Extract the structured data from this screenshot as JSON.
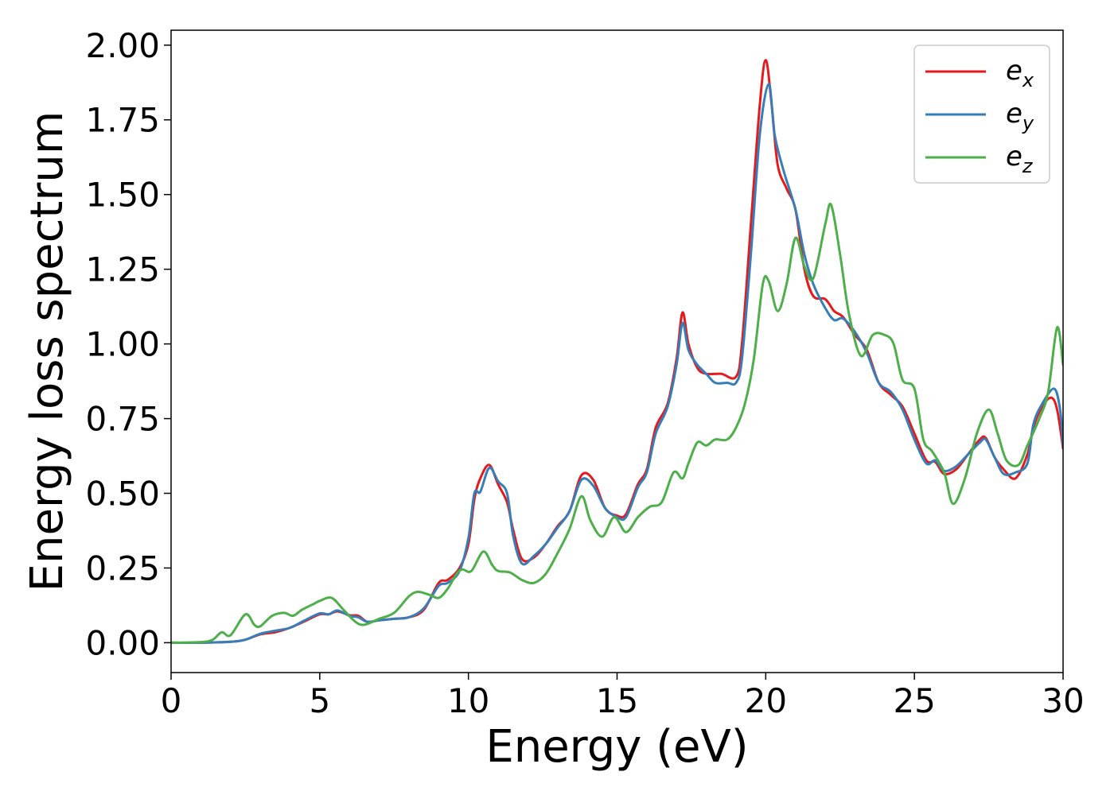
{
  "chart_data": {
    "type": "line",
    "title": "",
    "xlabel": "Energy (eV)",
    "ylabel": "Energy loss spectrum",
    "xlim": [
      0,
      30
    ],
    "ylim": [
      -0.1,
      2.05
    ],
    "xticks": [
      0,
      5,
      10,
      15,
      20,
      25,
      30
    ],
    "xtick_labels": [
      "0",
      "5",
      "10",
      "15",
      "20",
      "25",
      "30"
    ],
    "yticks": [
      0,
      0.25,
      0.5,
      0.75,
      1.0,
      1.25,
      1.5,
      1.75,
      2.0
    ],
    "ytick_labels": [
      "0.00",
      "0.25",
      "0.50",
      "0.75",
      "1.00",
      "1.25",
      "1.50",
      "1.75",
      "2.00"
    ],
    "grid": false,
    "legend_position": "top-right",
    "series": [
      {
        "name": "e",
        "subscript": "x",
        "color": "#e41a1c",
        "points": [
          [
            0,
            0
          ],
          [
            1,
            0
          ],
          [
            2,
            0.003
          ],
          [
            2.5,
            0.01
          ],
          [
            3,
            0.028
          ],
          [
            3.5,
            0.035
          ],
          [
            4,
            0.05
          ],
          [
            4.5,
            0.072
          ],
          [
            5,
            0.095
          ],
          [
            5.3,
            0.095
          ],
          [
            5.6,
            0.105
          ],
          [
            6,
            0.092
          ],
          [
            6.3,
            0.09
          ],
          [
            6.6,
            0.07
          ],
          [
            7,
            0.075
          ],
          [
            7.5,
            0.08
          ],
          [
            8,
            0.085
          ],
          [
            8.5,
            0.11
          ],
          [
            9,
            0.2
          ],
          [
            9.3,
            0.21
          ],
          [
            9.7,
            0.25
          ],
          [
            10,
            0.33
          ],
          [
            10.2,
            0.48
          ],
          [
            10.4,
            0.55
          ],
          [
            10.7,
            0.595
          ],
          [
            11,
            0.53
          ],
          [
            11.3,
            0.47
          ],
          [
            11.5,
            0.38
          ],
          [
            11.8,
            0.28
          ],
          [
            12.2,
            0.285
          ],
          [
            12.6,
            0.33
          ],
          [
            13,
            0.39
          ],
          [
            13.4,
            0.44
          ],
          [
            13.8,
            0.56
          ],
          [
            14.2,
            0.545
          ],
          [
            14.6,
            0.45
          ],
          [
            15,
            0.425
          ],
          [
            15.3,
            0.43
          ],
          [
            15.7,
            0.53
          ],
          [
            16,
            0.58
          ],
          [
            16.3,
            0.72
          ],
          [
            16.7,
            0.8
          ],
          [
            17,
            0.95
          ],
          [
            17.2,
            1.105
          ],
          [
            17.4,
            1.0
          ],
          [
            17.7,
            0.92
          ],
          [
            18,
            0.9
          ],
          [
            18.5,
            0.9
          ],
          [
            19,
            0.89
          ],
          [
            19.2,
            1.0
          ],
          [
            19.5,
            1.4
          ],
          [
            19.8,
            1.8
          ],
          [
            20,
            1.95
          ],
          [
            20.2,
            1.8
          ],
          [
            20.4,
            1.6
          ],
          [
            20.7,
            1.52
          ],
          [
            21,
            1.45
          ],
          [
            21.3,
            1.25
          ],
          [
            21.6,
            1.16
          ],
          [
            22,
            1.15
          ],
          [
            22.3,
            1.11
          ],
          [
            22.6,
            1.09
          ],
          [
            23,
            1.03
          ],
          [
            23.4,
            0.98
          ],
          [
            23.8,
            0.87
          ],
          [
            24.2,
            0.83
          ],
          [
            24.6,
            0.79
          ],
          [
            25,
            0.7
          ],
          [
            25.4,
            0.61
          ],
          [
            25.7,
            0.605
          ],
          [
            26,
            0.565
          ],
          [
            26.4,
            0.58
          ],
          [
            26.8,
            0.63
          ],
          [
            27.2,
            0.68
          ],
          [
            27.4,
            0.685
          ],
          [
            27.7,
            0.62
          ],
          [
            28,
            0.58
          ],
          [
            28.4,
            0.55
          ],
          [
            28.8,
            0.63
          ],
          [
            29,
            0.72
          ],
          [
            29.3,
            0.79
          ],
          [
            29.6,
            0.82
          ],
          [
            29.8,
            0.78
          ],
          [
            30,
            0.65
          ]
        ]
      },
      {
        "name": "e",
        "subscript": "y",
        "color": "#377eb8",
        "points": [
          [
            0,
            0
          ],
          [
            1,
            0
          ],
          [
            2,
            0.003
          ],
          [
            2.5,
            0.01
          ],
          [
            3,
            0.03
          ],
          [
            3.5,
            0.04
          ],
          [
            4,
            0.05
          ],
          [
            4.5,
            0.075
          ],
          [
            5,
            0.098
          ],
          [
            5.3,
            0.095
          ],
          [
            5.6,
            0.108
          ],
          [
            6,
            0.09
          ],
          [
            6.3,
            0.085
          ],
          [
            6.6,
            0.07
          ],
          [
            7,
            0.075
          ],
          [
            7.5,
            0.08
          ],
          [
            8,
            0.085
          ],
          [
            8.5,
            0.115
          ],
          [
            9,
            0.19
          ],
          [
            9.3,
            0.2
          ],
          [
            9.7,
            0.24
          ],
          [
            10,
            0.35
          ],
          [
            10.2,
            0.5
          ],
          [
            10.4,
            0.505
          ],
          [
            10.7,
            0.585
          ],
          [
            11,
            0.54
          ],
          [
            11.3,
            0.5
          ],
          [
            11.5,
            0.36
          ],
          [
            11.8,
            0.265
          ],
          [
            12.2,
            0.29
          ],
          [
            12.6,
            0.33
          ],
          [
            13,
            0.385
          ],
          [
            13.4,
            0.44
          ],
          [
            13.8,
            0.545
          ],
          [
            14.2,
            0.525
          ],
          [
            14.6,
            0.45
          ],
          [
            15,
            0.42
          ],
          [
            15.3,
            0.42
          ],
          [
            15.7,
            0.52
          ],
          [
            16,
            0.57
          ],
          [
            16.3,
            0.7
          ],
          [
            16.7,
            0.79
          ],
          [
            17,
            0.93
          ],
          [
            17.2,
            1.07
          ],
          [
            17.4,
            0.98
          ],
          [
            17.7,
            0.93
          ],
          [
            18,
            0.9
          ],
          [
            18.3,
            0.87
          ],
          [
            18.7,
            0.87
          ],
          [
            19,
            0.87
          ],
          [
            19.2,
            0.95
          ],
          [
            19.5,
            1.3
          ],
          [
            19.8,
            1.7
          ],
          [
            20.1,
            1.87
          ],
          [
            20.3,
            1.7
          ],
          [
            20.6,
            1.58
          ],
          [
            21,
            1.45
          ],
          [
            21.3,
            1.3
          ],
          [
            21.6,
            1.2
          ],
          [
            22,
            1.12
          ],
          [
            22.3,
            1.08
          ],
          [
            22.6,
            1.085
          ],
          [
            23,
            1.04
          ],
          [
            23.4,
            0.97
          ],
          [
            23.8,
            0.87
          ],
          [
            24.2,
            0.84
          ],
          [
            24.6,
            0.78
          ],
          [
            25,
            0.68
          ],
          [
            25.4,
            0.6
          ],
          [
            25.7,
            0.61
          ],
          [
            26,
            0.575
          ],
          [
            26.4,
            0.59
          ],
          [
            26.8,
            0.63
          ],
          [
            27.2,
            0.67
          ],
          [
            27.4,
            0.68
          ],
          [
            27.7,
            0.62
          ],
          [
            28,
            0.565
          ],
          [
            28.4,
            0.57
          ],
          [
            28.8,
            0.6
          ],
          [
            29,
            0.73
          ],
          [
            29.3,
            0.8
          ],
          [
            29.7,
            0.85
          ],
          [
            29.9,
            0.78
          ],
          [
            30,
            0.66
          ]
        ]
      },
      {
        "name": "e",
        "subscript": "z",
        "color": "#4daf4a",
        "points": [
          [
            0,
            0
          ],
          [
            1,
            0.002
          ],
          [
            1.4,
            0.01
          ],
          [
            1.7,
            0.035
          ],
          [
            2,
            0.025
          ],
          [
            2.5,
            0.095
          ],
          [
            2.8,
            0.06
          ],
          [
            3,
            0.055
          ],
          [
            3.4,
            0.09
          ],
          [
            3.8,
            0.1
          ],
          [
            4.1,
            0.09
          ],
          [
            4.4,
            0.11
          ],
          [
            4.8,
            0.13
          ],
          [
            5,
            0.14
          ],
          [
            5.4,
            0.15
          ],
          [
            5.8,
            0.11
          ],
          [
            6.2,
            0.07
          ],
          [
            6.5,
            0.06
          ],
          [
            7,
            0.08
          ],
          [
            7.5,
            0.1
          ],
          [
            8,
            0.155
          ],
          [
            8.3,
            0.17
          ],
          [
            8.7,
            0.16
          ],
          [
            9,
            0.15
          ],
          [
            9.3,
            0.18
          ],
          [
            9.6,
            0.23
          ],
          [
            9.8,
            0.245
          ],
          [
            10.1,
            0.24
          ],
          [
            10.5,
            0.305
          ],
          [
            10.8,
            0.26
          ],
          [
            11,
            0.24
          ],
          [
            11.4,
            0.235
          ],
          [
            11.8,
            0.21
          ],
          [
            12.2,
            0.2
          ],
          [
            12.6,
            0.23
          ],
          [
            13,
            0.3
          ],
          [
            13.4,
            0.38
          ],
          [
            13.8,
            0.49
          ],
          [
            14.1,
            0.41
          ],
          [
            14.5,
            0.355
          ],
          [
            14.9,
            0.42
          ],
          [
            15.3,
            0.37
          ],
          [
            15.7,
            0.42
          ],
          [
            16.1,
            0.455
          ],
          [
            16.5,
            0.47
          ],
          [
            16.9,
            0.57
          ],
          [
            17.2,
            0.55
          ],
          [
            17.4,
            0.6
          ],
          [
            17.7,
            0.67
          ],
          [
            18,
            0.66
          ],
          [
            18.3,
            0.68
          ],
          [
            18.7,
            0.68
          ],
          [
            19,
            0.72
          ],
          [
            19.3,
            0.8
          ],
          [
            19.6,
            0.95
          ],
          [
            19.9,
            1.2
          ],
          [
            20.1,
            1.21
          ],
          [
            20.4,
            1.11
          ],
          [
            20.7,
            1.2
          ],
          [
            21,
            1.355
          ],
          [
            21.3,
            1.26
          ],
          [
            21.6,
            1.22
          ],
          [
            22,
            1.4
          ],
          [
            22.2,
            1.465
          ],
          [
            22.5,
            1.3
          ],
          [
            22.8,
            1.1
          ],
          [
            23.2,
            0.96
          ],
          [
            23.6,
            1.03
          ],
          [
            24,
            1.03
          ],
          [
            24.3,
            1.0
          ],
          [
            24.6,
            0.88
          ],
          [
            25,
            0.85
          ],
          [
            25.3,
            0.68
          ],
          [
            25.6,
            0.64
          ],
          [
            26,
            0.57
          ],
          [
            26.3,
            0.465
          ],
          [
            26.7,
            0.55
          ],
          [
            27.1,
            0.7
          ],
          [
            27.5,
            0.78
          ],
          [
            27.8,
            0.7
          ],
          [
            28.1,
            0.61
          ],
          [
            28.5,
            0.595
          ],
          [
            28.8,
            0.66
          ],
          [
            29.2,
            0.75
          ],
          [
            29.5,
            0.84
          ],
          [
            29.8,
            1.055
          ],
          [
            30,
            0.93
          ]
        ]
      }
    ]
  }
}
